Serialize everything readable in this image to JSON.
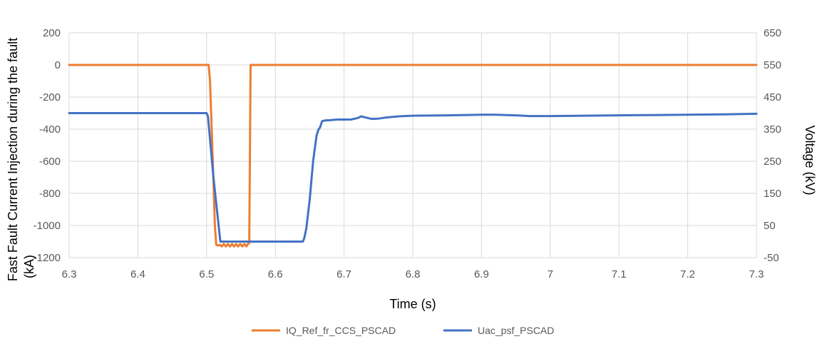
{
  "chart_data": {
    "type": "line",
    "xlabel": "Time (s)",
    "ylabel_left_lines": [
      "Fast Fault Current  Injection during the fault",
      "(kA)"
    ],
    "ylabel_right": "Voltage (kV)",
    "xlim": [
      6.3,
      7.3
    ],
    "xticks": [
      "6.3",
      "6.4",
      "6.5",
      "6.6",
      "6.7",
      "6.8",
      "6.9",
      "7",
      "7.1",
      "7.2",
      "7.3"
    ],
    "ylim_left": [
      -1200,
      200
    ],
    "yticks_left": [
      "200",
      "0",
      "-200",
      "-400",
      "-600",
      "-800",
      "-1000",
      "-1200"
    ],
    "ylim_right": [
      -50,
      650
    ],
    "yticks_right": [
      "650",
      "550",
      "450",
      "350",
      "250",
      "150",
      "50",
      "-50"
    ],
    "grid": true,
    "legend_position": "bottom-center",
    "series": [
      {
        "name": "IQ_Ref_fr_CCS_PSCAD",
        "axis": "left",
        "color": "#ED7D31",
        "x": [
          6.3,
          6.503,
          6.505,
          6.509,
          6.512,
          6.514,
          6.516,
          6.519,
          6.522,
          6.525,
          6.528,
          6.531,
          6.534,
          6.537,
          6.54,
          6.543,
          6.546,
          6.549,
          6.552,
          6.555,
          6.558,
          6.56,
          6.562,
          6.563,
          6.564,
          7.3
        ],
        "values": [
          0,
          0,
          -100,
          -600,
          -1000,
          -1120,
          -1125,
          -1120,
          -1130,
          -1115,
          -1130,
          -1115,
          -1130,
          -1115,
          -1130,
          -1115,
          -1130,
          -1115,
          -1130,
          -1115,
          -1130,
          -1115,
          -1110,
          -600,
          0,
          0
        ]
      },
      {
        "name": "Uac_psf_PSCAD",
        "axis": "right",
        "color": "#4472C4",
        "x": [
          6.3,
          6.5,
          6.502,
          6.51,
          6.52,
          6.53,
          6.54,
          6.55,
          6.6,
          6.64,
          6.642,
          6.645,
          6.65,
          6.655,
          6.66,
          6.663,
          6.665,
          6.668,
          6.672,
          6.68,
          6.69,
          6.7,
          6.71,
          6.72,
          6.725,
          6.73,
          6.74,
          6.75,
          6.76,
          6.78,
          6.8,
          6.85,
          6.9,
          6.92,
          6.95,
          6.97,
          7.0,
          7.05,
          7.1,
          7.15,
          7.2,
          7.25,
          7.3
        ],
        "values": [
          400,
          400,
          390,
          200,
          0,
          0,
          0,
          0,
          0,
          0,
          10,
          40,
          130,
          250,
          330,
          350,
          355,
          375,
          377,
          378,
          380,
          380,
          380,
          385,
          390,
          387,
          382,
          383,
          386,
          390,
          392,
          393,
          395,
          395,
          393,
          391,
          391,
          392,
          393,
          394,
          395,
          396,
          398
        ]
      }
    ]
  }
}
